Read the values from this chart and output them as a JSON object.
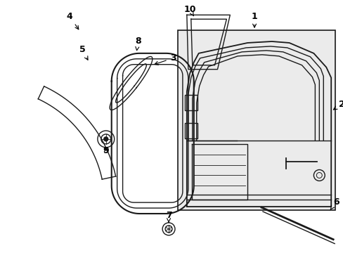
{
  "background_color": "#ffffff",
  "fig_width": 4.89,
  "fig_height": 3.6,
  "dpi": 100,
  "line_color": "#1a1a1a",
  "box_fill": "#ebebeb"
}
